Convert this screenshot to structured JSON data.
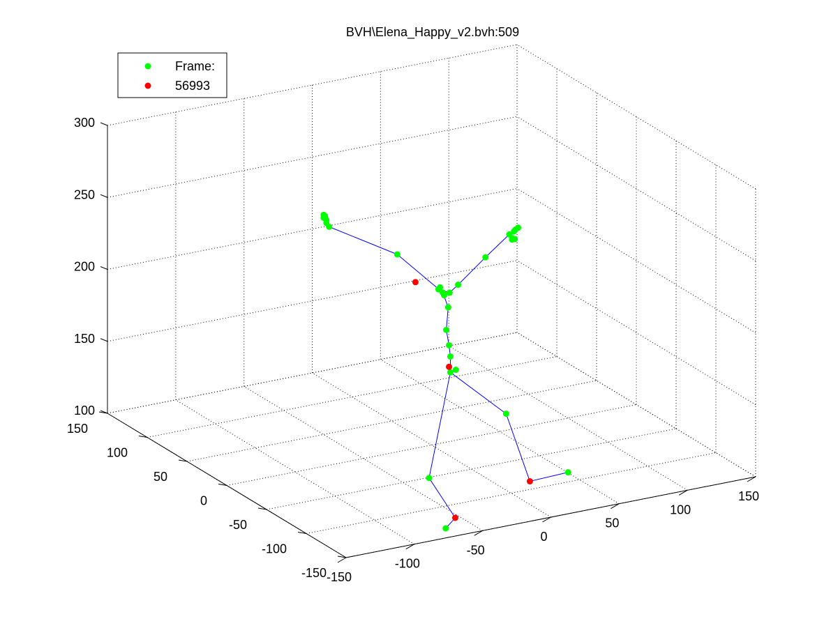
{
  "chart_data": {
    "type": "scatter",
    "title": "BVH\\Elena_Happy_v2.bvh:509",
    "xlim": [
      -150,
      150
    ],
    "ylim": [
      -150,
      150
    ],
    "zlim": [
      100,
      300
    ],
    "xticks": [
      "-150",
      "-100",
      "-50",
      "0",
      "50",
      "100",
      "150"
    ],
    "yticks": [
      "-150",
      "-100",
      "-50",
      "0",
      "50",
      "100",
      "150"
    ],
    "zticks": [
      "100",
      "150",
      "200",
      "250",
      "300"
    ],
    "grid": true,
    "legend": {
      "placement": "top-left",
      "entries": [
        {
          "label": "Frame:",
          "color": "#00ff00"
        },
        {
          "label": "56993",
          "color": "#ff0000"
        }
      ]
    },
    "colors": {
      "joint": "#00ff00",
      "highlight": "#ff0000",
      "bone": "#0000ff"
    },
    "series": [
      {
        "name": "Frame:",
        "color": "#00ff00",
        "points": [
          [
            -40,
            67,
            245
          ],
          [
            -40,
            67,
            243
          ],
          [
            -38,
            67,
            239
          ],
          [
            -36,
            67,
            236
          ],
          [
            -38,
            67,
            241
          ],
          [
            -39,
            67,
            244
          ],
          [
            4,
            50,
            215
          ],
          [
            33,
            46,
            188
          ],
          [
            35,
            46,
            184
          ],
          [
            36,
            46,
            182
          ],
          [
            33,
            48,
            186
          ],
          [
            40,
            46,
            183
          ],
          [
            48,
            49,
            186
          ],
          [
            75,
            61,
            196
          ],
          [
            96,
            67,
            206
          ],
          [
            98,
            67,
            203
          ],
          [
            100,
            67,
            202
          ],
          [
            100,
            68,
            207
          ],
          [
            101,
            68,
            208
          ],
          [
            103,
            68,
            209
          ],
          [
            98,
            67,
            202
          ],
          [
            39,
            46,
            173
          ],
          [
            37,
            45,
            158
          ],
          [
            39,
            45,
            147
          ],
          [
            40,
            45,
            139
          ],
          [
            40,
            45,
            128
          ],
          [
            44,
            45,
            129
          ],
          [
            4,
            10,
            73
          ],
          [
            75,
            35,
            96
          ],
          [
            107,
            12,
            57
          ],
          [
            29,
            32,
            26
          ]
        ]
      },
      {
        "name": "56993",
        "color": "#ff0000",
        "points": [
          [
            15,
            46,
            195
          ],
          [
            39,
            45,
            132
          ],
          [
            79,
            12,
            56
          ],
          [
            36,
            32,
            32
          ]
        ]
      }
    ],
    "bones": [
      [
        [
          -40,
          67,
          245
        ],
        [
          -38,
          67,
          239
        ]
      ],
      [
        [
          -38,
          67,
          239
        ],
        [
          -36,
          67,
          236
        ]
      ],
      [
        [
          -36,
          67,
          236
        ],
        [
          4,
          50,
          215
        ]
      ],
      [
        [
          4,
          50,
          215
        ],
        [
          35,
          46,
          184
        ]
      ],
      [
        [
          33,
          48,
          186
        ],
        [
          40,
          46,
          183
        ]
      ],
      [
        [
          40,
          46,
          183
        ],
        [
          48,
          49,
          186
        ]
      ],
      [
        [
          48,
          49,
          186
        ],
        [
          75,
          61,
          196
        ]
      ],
      [
        [
          75,
          61,
          196
        ],
        [
          96,
          67,
          206
        ]
      ],
      [
        [
          96,
          67,
          206
        ],
        [
          101,
          68,
          208
        ]
      ],
      [
        [
          35,
          46,
          184
        ],
        [
          39,
          46,
          173
        ]
      ],
      [
        [
          39,
          46,
          173
        ],
        [
          37,
          45,
          158
        ]
      ],
      [
        [
          37,
          45,
          158
        ],
        [
          39,
          45,
          147
        ]
      ],
      [
        [
          39,
          45,
          147
        ],
        [
          40,
          45,
          139
        ]
      ],
      [
        [
          40,
          45,
          139
        ],
        [
          40,
          45,
          128
        ]
      ],
      [
        [
          40,
          45,
          128
        ],
        [
          4,
          10,
          73
        ]
      ],
      [
        [
          4,
          10,
          73
        ],
        [
          36,
          32,
          32
        ]
      ],
      [
        [
          36,
          32,
          32
        ],
        [
          29,
          32,
          26
        ]
      ],
      [
        [
          40,
          45,
          128
        ],
        [
          75,
          35,
          96
        ]
      ],
      [
        [
          75,
          35,
          96
        ],
        [
          79,
          12,
          56
        ]
      ],
      [
        [
          79,
          12,
          56
        ],
        [
          107,
          12,
          57
        ]
      ]
    ]
  }
}
